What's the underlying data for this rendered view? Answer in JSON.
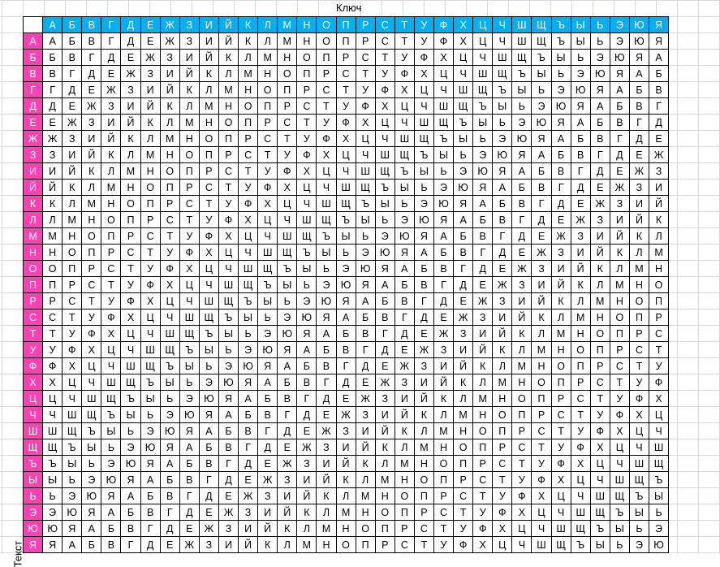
{
  "labels": {
    "key": "Ключ",
    "text": "Текст"
  },
  "colors": {
    "header_top": "#00b0f0",
    "header_left": "#ff3fb3",
    "grid": "#d9d9d9"
  },
  "alphabet": [
    "А",
    "Б",
    "В",
    "Г",
    "Д",
    "Е",
    "Ж",
    "З",
    "И",
    "Й",
    "К",
    "Л",
    "М",
    "Н",
    "О",
    "П",
    "Р",
    "С",
    "Т",
    "У",
    "Ф",
    "Х",
    "Ц",
    "Ч",
    "Ш",
    "Щ",
    "Ъ",
    "Ы",
    "Ь",
    "Э",
    "Ю",
    "Я"
  ],
  "table": {
    "rows": [
      [
        "А",
        "Б",
        "В",
        "Г",
        "Д",
        "Е",
        "Ж",
        "З",
        "И",
        "Й",
        "К",
        "Л",
        "М",
        "Н",
        "О",
        "П",
        "Р",
        "С",
        "Т",
        "У",
        "Ф",
        "Х",
        "Ц",
        "Ч",
        "Ш",
        "Щ",
        "Ъ",
        "Ы",
        "Ь",
        "Э",
        "Ю",
        "Я"
      ],
      [
        "Б",
        "В",
        "Г",
        "Д",
        "Е",
        "Ж",
        "З",
        "И",
        "Й",
        "К",
        "Л",
        "М",
        "Н",
        "О",
        "П",
        "Р",
        "С",
        "Т",
        "У",
        "Ф",
        "Х",
        "Ц",
        "Ч",
        "Ш",
        "Щ",
        "Ъ",
        "Ы",
        "Ь",
        "Э",
        "Ю",
        "Я",
        "А"
      ],
      [
        "В",
        "Г",
        "Д",
        "Е",
        "Ж",
        "З",
        "И",
        "Й",
        "К",
        "Л",
        "М",
        "Н",
        "О",
        "П",
        "Р",
        "С",
        "Т",
        "У",
        "Ф",
        "Х",
        "Ц",
        "Ч",
        "Ш",
        "Щ",
        "Ъ",
        "Ы",
        "Ь",
        "Э",
        "Ю",
        "Я",
        "А",
        "Б"
      ],
      [
        "Г",
        "Д",
        "Е",
        "Ж",
        "З",
        "И",
        "Й",
        "К",
        "Л",
        "М",
        "Н",
        "О",
        "П",
        "Р",
        "С",
        "Т",
        "У",
        "Ф",
        "Х",
        "Ц",
        "Ч",
        "Ш",
        "Щ",
        "Ъ",
        "Ы",
        "Ь",
        "Э",
        "Ю",
        "Я",
        "А",
        "Б",
        "В"
      ],
      [
        "Д",
        "Е",
        "Ж",
        "З",
        "И",
        "Й",
        "К",
        "Л",
        "М",
        "Н",
        "О",
        "П",
        "Р",
        "С",
        "Т",
        "У",
        "Ф",
        "Х",
        "Ц",
        "Ч",
        "Ш",
        "Щ",
        "Ъ",
        "Ы",
        "Ь",
        "Э",
        "Ю",
        "Я",
        "А",
        "Б",
        "В",
        "Г"
      ],
      [
        "Е",
        "Ж",
        "З",
        "И",
        "Й",
        "К",
        "Л",
        "М",
        "Н",
        "О",
        "П",
        "Р",
        "С",
        "Т",
        "У",
        "Ф",
        "Х",
        "Ц",
        "Ч",
        "Ш",
        "Щ",
        "Ъ",
        "Ы",
        "Ь",
        "Э",
        "Ю",
        "Я",
        "А",
        "Б",
        "В",
        "Г",
        "Д"
      ],
      [
        "Ж",
        "З",
        "И",
        "Й",
        "К",
        "Л",
        "М",
        "Н",
        "О",
        "П",
        "Р",
        "С",
        "Т",
        "У",
        "Ф",
        "Х",
        "Ц",
        "Ч",
        "Ш",
        "Щ",
        "Ъ",
        "Ы",
        "Ь",
        "Э",
        "Ю",
        "Я",
        "А",
        "Б",
        "В",
        "Г",
        "Д",
        "Е"
      ],
      [
        "З",
        "И",
        "Й",
        "К",
        "Л",
        "М",
        "Н",
        "О",
        "П",
        "Р",
        "С",
        "Т",
        "У",
        "Ф",
        "Х",
        "Ц",
        "Ч",
        "Ш",
        "Щ",
        "Ъ",
        "Ы",
        "Ь",
        "Э",
        "Ю",
        "Я",
        "А",
        "Б",
        "В",
        "Г",
        "Д",
        "Е",
        "Ж"
      ],
      [
        "И",
        "Й",
        "К",
        "Л",
        "М",
        "Н",
        "О",
        "П",
        "Р",
        "С",
        "Т",
        "У",
        "Ф",
        "Х",
        "Ц",
        "Ч",
        "Ш",
        "Щ",
        "Ъ",
        "Ы",
        "Ь",
        "Э",
        "Ю",
        "Я",
        "А",
        "Б",
        "В",
        "Г",
        "Д",
        "Е",
        "Ж",
        "З"
      ],
      [
        "Й",
        "К",
        "Л",
        "М",
        "Н",
        "О",
        "П",
        "Р",
        "С",
        "Т",
        "У",
        "Ф",
        "Х",
        "Ц",
        "Ч",
        "Ш",
        "Щ",
        "Ъ",
        "Ы",
        "Ь",
        "Э",
        "Ю",
        "Я",
        "А",
        "Б",
        "В",
        "Г",
        "Д",
        "Е",
        "Ж",
        "З",
        "И"
      ],
      [
        "К",
        "Л",
        "М",
        "Н",
        "О",
        "П",
        "Р",
        "С",
        "Т",
        "У",
        "Ф",
        "Х",
        "Ц",
        "Ч",
        "Ш",
        "Щ",
        "Ъ",
        "Ы",
        "Ь",
        "Э",
        "Ю",
        "Я",
        "А",
        "Б",
        "В",
        "Г",
        "Д",
        "Е",
        "Ж",
        "З",
        "И",
        "Й"
      ],
      [
        "Л",
        "М",
        "Н",
        "О",
        "П",
        "Р",
        "С",
        "Т",
        "У",
        "Ф",
        "Х",
        "Ц",
        "Ч",
        "Ш",
        "Щ",
        "Ъ",
        "Ы",
        "Ь",
        "Э",
        "Ю",
        "Я",
        "А",
        "Б",
        "В",
        "Г",
        "Д",
        "Е",
        "Ж",
        "З",
        "И",
        "Й",
        "К"
      ],
      [
        "М",
        "Н",
        "О",
        "П",
        "Р",
        "С",
        "Т",
        "У",
        "Ф",
        "Х",
        "Ц",
        "Ч",
        "Ш",
        "Щ",
        "Ъ",
        "Ы",
        "Ь",
        "Э",
        "Ю",
        "Я",
        "А",
        "Б",
        "В",
        "Г",
        "Д",
        "Е",
        "Ж",
        "З",
        "И",
        "Й",
        "К",
        "Л"
      ],
      [
        "Н",
        "О",
        "П",
        "Р",
        "С",
        "Т",
        "У",
        "Ф",
        "Х",
        "Ц",
        "Ч",
        "Ш",
        "Щ",
        "Ъ",
        "Ы",
        "Ь",
        "Э",
        "Ю",
        "Я",
        "А",
        "Б",
        "В",
        "Г",
        "Д",
        "Е",
        "Ж",
        "З",
        "И",
        "Й",
        "К",
        "Л",
        "М"
      ],
      [
        "О",
        "П",
        "Р",
        "С",
        "Т",
        "У",
        "Ф",
        "Х",
        "Ц",
        "Ч",
        "Ш",
        "Щ",
        "Ъ",
        "Ы",
        "Ь",
        "Э",
        "Ю",
        "Я",
        "А",
        "Б",
        "В",
        "Г",
        "Д",
        "Е",
        "Ж",
        "З",
        "И",
        "Й",
        "К",
        "Л",
        "М",
        "Н"
      ],
      [
        "П",
        "Р",
        "С",
        "Т",
        "У",
        "Ф",
        "Х",
        "Ц",
        "Ч",
        "Ш",
        "Щ",
        "Ъ",
        "Ы",
        "Ь",
        "Э",
        "Ю",
        "Я",
        "А",
        "Б",
        "В",
        "Г",
        "Д",
        "Е",
        "Ж",
        "З",
        "И",
        "Й",
        "К",
        "Л",
        "М",
        "Н",
        "О"
      ],
      [
        "Р",
        "С",
        "Т",
        "У",
        "Ф",
        "Х",
        "Ц",
        "Ч",
        "Ш",
        "Щ",
        "Ъ",
        "Ы",
        "Ь",
        "Э",
        "Ю",
        "Я",
        "А",
        "Б",
        "В",
        "Г",
        "Д",
        "Е",
        "Ж",
        "З",
        "И",
        "Й",
        "К",
        "Л",
        "М",
        "Н",
        "О",
        "П"
      ],
      [
        "С",
        "Т",
        "У",
        "Ф",
        "Х",
        "Ц",
        "Ч",
        "Ш",
        "Щ",
        "Ъ",
        "Ы",
        "Ь",
        "Э",
        "Ю",
        "Я",
        "А",
        "Б",
        "В",
        "Г",
        "Д",
        "Е",
        "Ж",
        "З",
        "И",
        "Й",
        "К",
        "Л",
        "М",
        "Н",
        "О",
        "П",
        "Р"
      ],
      [
        "Т",
        "У",
        "Ф",
        "Х",
        "Ц",
        "Ч",
        "Ш",
        "Щ",
        "Ъ",
        "Ы",
        "Ь",
        "Э",
        "Ю",
        "Я",
        "А",
        "Б",
        "В",
        "Г",
        "Д",
        "Е",
        "Ж",
        "З",
        "И",
        "Й",
        "К",
        "Л",
        "М",
        "Н",
        "О",
        "П",
        "Р",
        "С"
      ],
      [
        "У",
        "Ф",
        "Х",
        "Ц",
        "Ч",
        "Ш",
        "Щ",
        "Ъ",
        "Ы",
        "Ь",
        "Э",
        "Ю",
        "Я",
        "А",
        "Б",
        "В",
        "Г",
        "Д",
        "Е",
        "Ж",
        "З",
        "И",
        "Й",
        "К",
        "Л",
        "М",
        "Н",
        "О",
        "П",
        "Р",
        "С",
        "Т"
      ],
      [
        "Ф",
        "Х",
        "Ц",
        "Ч",
        "Ш",
        "Щ",
        "Ъ",
        "Ы",
        "Ь",
        "Э",
        "Ю",
        "Я",
        "А",
        "Б",
        "В",
        "Г",
        "Д",
        "Е",
        "Ж",
        "З",
        "И",
        "Й",
        "К",
        "Л",
        "М",
        "Н",
        "О",
        "П",
        "Р",
        "С",
        "Т",
        "У"
      ],
      [
        "Х",
        "Ц",
        "Ч",
        "Ш",
        "Щ",
        "Ъ",
        "Ы",
        "Ь",
        "Э",
        "Ю",
        "Я",
        "А",
        "Б",
        "В",
        "Г",
        "Д",
        "Е",
        "Ж",
        "З",
        "И",
        "Й",
        "К",
        "Л",
        "М",
        "Н",
        "О",
        "П",
        "Р",
        "С",
        "Т",
        "У",
        "Ф"
      ],
      [
        "Ц",
        "Ч",
        "Ш",
        "Щ",
        "Ъ",
        "Ы",
        "Ь",
        "Э",
        "Ю",
        "Я",
        "А",
        "Б",
        "В",
        "Г",
        "Д",
        "Е",
        "Ж",
        "З",
        "И",
        "Й",
        "К",
        "Л",
        "М",
        "Н",
        "О",
        "П",
        "Р",
        "С",
        "Т",
        "У",
        "Ф",
        "Х"
      ],
      [
        "Ч",
        "Ш",
        "Щ",
        "Ъ",
        "Ы",
        "Ь",
        "Э",
        "Ю",
        "Я",
        "А",
        "Б",
        "В",
        "Г",
        "Д",
        "Е",
        "Ж",
        "З",
        "И",
        "Й",
        "К",
        "Л",
        "М",
        "Н",
        "О",
        "П",
        "Р",
        "С",
        "Т",
        "У",
        "Ф",
        "Х",
        "Ц"
      ],
      [
        "Ш",
        "Щ",
        "Ъ",
        "Ы",
        "Ь",
        "Э",
        "Ю",
        "Я",
        "А",
        "Б",
        "В",
        "Г",
        "Д",
        "Е",
        "Ж",
        "З",
        "И",
        "Й",
        "К",
        "Л",
        "М",
        "Н",
        "О",
        "П",
        "Р",
        "С",
        "Т",
        "У",
        "Ф",
        "Х",
        "Ц",
        "Ч"
      ],
      [
        "Щ",
        "Ъ",
        "Ы",
        "Ь",
        "Э",
        "Ю",
        "Я",
        "А",
        "Б",
        "В",
        "Г",
        "Д",
        "Е",
        "Ж",
        "З",
        "И",
        "Й",
        "К",
        "Л",
        "М",
        "Н",
        "О",
        "П",
        "Р",
        "С",
        "Т",
        "У",
        "Ф",
        "Х",
        "Ц",
        "Ч",
        "Ш"
      ],
      [
        "Ъ",
        "Ы",
        "Ь",
        "Э",
        "Ю",
        "Я",
        "А",
        "Б",
        "В",
        "Г",
        "Д",
        "Е",
        "Ж",
        "З",
        "И",
        "Й",
        "К",
        "Л",
        "М",
        "Н",
        "О",
        "П",
        "Р",
        "С",
        "Т",
        "У",
        "Ф",
        "Х",
        "Ц",
        "Ч",
        "Ш",
        "Щ"
      ],
      [
        "Ы",
        "Ь",
        "Э",
        "Ю",
        "Я",
        "А",
        "Б",
        "В",
        "Г",
        "Д",
        "Е",
        "Ж",
        "З",
        "И",
        "Й",
        "К",
        "Л",
        "М",
        "Н",
        "О",
        "П",
        "Р",
        "С",
        "Т",
        "У",
        "Ф",
        "Х",
        "Ц",
        "Ч",
        "Ш",
        "Щ",
        "Ъ"
      ],
      [
        "Ь",
        "Э",
        "Ю",
        "Я",
        "А",
        "Б",
        "В",
        "Г",
        "Д",
        "Е",
        "Ж",
        "З",
        "И",
        "Й",
        "К",
        "Л",
        "М",
        "Н",
        "О",
        "П",
        "Р",
        "С",
        "Т",
        "У",
        "Ф",
        "Х",
        "Ц",
        "Ч",
        "Ш",
        "Щ",
        "Ъ",
        "Ы"
      ],
      [
        "Э",
        "Ю",
        "Я",
        "А",
        "Б",
        "В",
        "Г",
        "Д",
        "Е",
        "Ж",
        "З",
        "И",
        "Й",
        "К",
        "Л",
        "М",
        "Н",
        "О",
        "П",
        "Р",
        "С",
        "Т",
        "У",
        "Ф",
        "Х",
        "Ц",
        "Ч",
        "Ш",
        "Щ",
        "Ъ",
        "Ы",
        "Ь"
      ],
      [
        "Ю",
        "Я",
        "А",
        "Б",
        "В",
        "Г",
        "Д",
        "Е",
        "Ж",
        "З",
        "И",
        "Й",
        "К",
        "Л",
        "М",
        "Н",
        "О",
        "П",
        "Р",
        "С",
        "Т",
        "У",
        "Ф",
        "Х",
        "Ц",
        "Ч",
        "Ш",
        "Щ",
        "Ъ",
        "Ы",
        "Ь",
        "Э"
      ],
      [
        "Я",
        "А",
        "Б",
        "В",
        "Г",
        "Д",
        "Е",
        "Ж",
        "З",
        "И",
        "Й",
        "К",
        "Л",
        "М",
        "Н",
        "О",
        "П",
        "Р",
        "С",
        "Т",
        "У",
        "Ф",
        "Х",
        "Ц",
        "Ч",
        "Ш",
        "Щ",
        "Ъ",
        "Ы",
        "Ь",
        "Э",
        "Ю"
      ]
    ]
  }
}
